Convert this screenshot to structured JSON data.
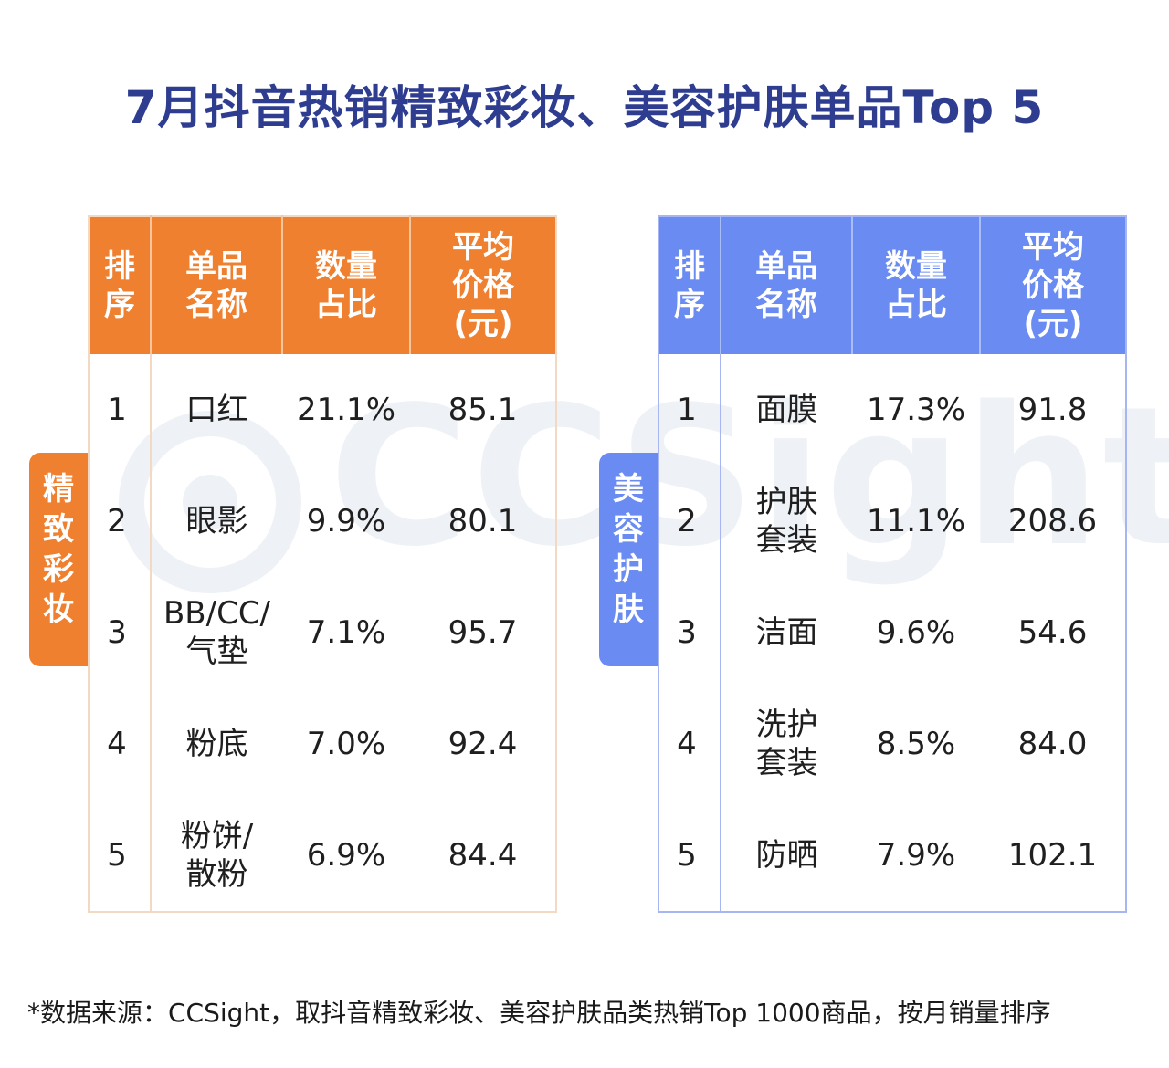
{
  "title": "7月抖音热销精致彩妆、美容护肤单品Top  5",
  "watermark": "CCSight",
  "colors": {
    "makeup": "#ee8030",
    "skincare": "#6a8bf1",
    "title": "#2e3d8f",
    "highlight": "#e0151b"
  },
  "makeup": {
    "label": "精\n致\n彩\n妆",
    "headers": [
      "排\n序",
      "单品\n名称",
      "数量\n占比",
      "平均\n价格\n(元)"
    ]
  },
  "skincare": {
    "label": "美\n容\n护\n肤",
    "headers": [
      "排\n序",
      "单品\n名称",
      "数量\n占比",
      "平均\n价格\n(元)"
    ]
  },
  "chart_data": [
    {
      "type": "table",
      "title": "精致彩妆",
      "columns": [
        "排序",
        "单品名称",
        "数量占比",
        "平均价格(元)"
      ],
      "rows": [
        {
          "rank": "1",
          "name": "口红",
          "share": "21.1%",
          "price": "85.1"
        },
        {
          "rank": "2",
          "name": "眼影",
          "share": "9.9%",
          "price": "80.1"
        },
        {
          "rank": "3",
          "name": "BB/CC/\n气垫",
          "share": "7.1%",
          "price": "95.7"
        },
        {
          "rank": "4",
          "name": "粉底",
          "share": "7.0%",
          "price": "92.4"
        },
        {
          "rank": "5",
          "name": "粉饼/\n散粉",
          "share": "6.9%",
          "price": "84.4"
        }
      ]
    },
    {
      "type": "table",
      "title": "美容护肤",
      "columns": [
        "排序",
        "单品名称",
        "数量占比",
        "平均价格(元)"
      ],
      "rows": [
        {
          "rank": "1",
          "name": "面膜",
          "share": "17.3%",
          "price": "91.8"
        },
        {
          "rank": "2",
          "name": "护肤\n套装",
          "share": "11.1%",
          "price": "208.6"
        },
        {
          "rank": "3",
          "name": "洁面",
          "share": "9.6%",
          "price": "54.6"
        },
        {
          "rank": "4",
          "name": "洗护\n套装",
          "share": "8.5%",
          "price": "84.0"
        },
        {
          "rank": "5",
          "name": "防晒",
          "share": "7.9%",
          "price": "102.1"
        }
      ]
    }
  ],
  "footnote": "*数据来源：CCSight，取抖音精致彩妆、美容护肤品类热销Top 1000商品，按月销量排序"
}
